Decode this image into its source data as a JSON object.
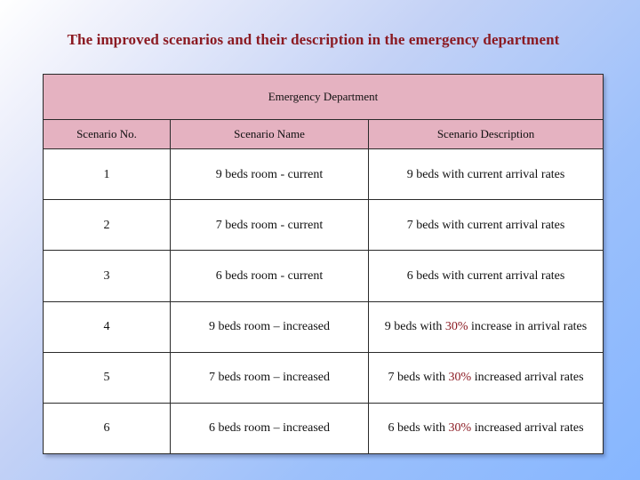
{
  "title": "The improved scenarios and their description in the emergency department",
  "table": {
    "group_header": "Emergency Department",
    "columns": [
      "Scenario No.",
      "Scenario Name",
      "Scenario Description"
    ],
    "rows": [
      {
        "no": "1",
        "name": "9 beds room - current",
        "desc_pre": "9 beds with current arrival rates",
        "desc_pct": "",
        "desc_post": ""
      },
      {
        "no": "2",
        "name": "7 beds room - current",
        "desc_pre": "7 beds with current arrival rates",
        "desc_pct": "",
        "desc_post": ""
      },
      {
        "no": "3",
        "name": "6 beds room - current",
        "desc_pre": "6 beds with current arrival rates",
        "desc_pct": "",
        "desc_post": ""
      },
      {
        "no": "4",
        "name": "9 beds room – increased",
        "desc_pre": "9 beds with ",
        "desc_pct": "30%",
        "desc_post": " increase in arrival rates"
      },
      {
        "no": "5",
        "name": "7 beds room – increased",
        "desc_pre": "7 beds with ",
        "desc_pct": "30%",
        "desc_post": "  increased arrival rates"
      },
      {
        "no": "6",
        "name": "6 beds room – increased",
        "desc_pre": "6 beds with ",
        "desc_pct": "30%",
        "desc_post": "  increased arrival rates"
      }
    ]
  },
  "colors": {
    "title": "#8b1a22",
    "header_fill": "#e5b2c1",
    "percent_highlight": "#8b1a22"
  }
}
